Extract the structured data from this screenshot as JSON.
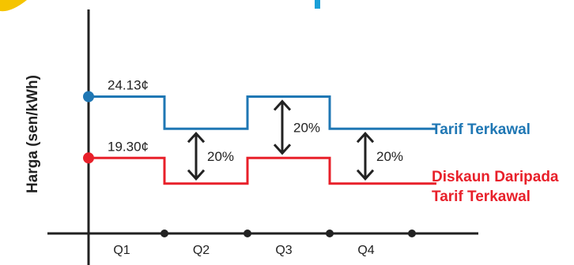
{
  "chart_data": {
    "type": "line",
    "ylabel": "Harga (sen/kWh)",
    "categories": [
      "Q1",
      "Q2",
      "Q3",
      "Q4"
    ],
    "series": [
      {
        "name": "Tarif Terkawal",
        "name_lines": [
          "Tarif Terkawal"
        ],
        "color": "#1f77b4",
        "values": [
          24.13,
          21.6,
          24.13,
          21.6
        ],
        "start_label": "24.13¢"
      },
      {
        "name": "Diskaun Daripada Tarif Terkawal",
        "name_lines": [
          "Diskaun Daripada",
          "Tarif Terkawal"
        ],
        "color": "#e8202a",
        "values": [
          19.3,
          17.28,
          19.3,
          17.28
        ],
        "start_label": "19.30¢"
      }
    ],
    "differences": [
      {
        "quarter": "Q2",
        "label": "20%"
      },
      {
        "quarter": "Q3",
        "label": "20%"
      },
      {
        "quarter": "Q4",
        "label": "20%"
      }
    ],
    "ylim": [
      12,
      30
    ]
  }
}
